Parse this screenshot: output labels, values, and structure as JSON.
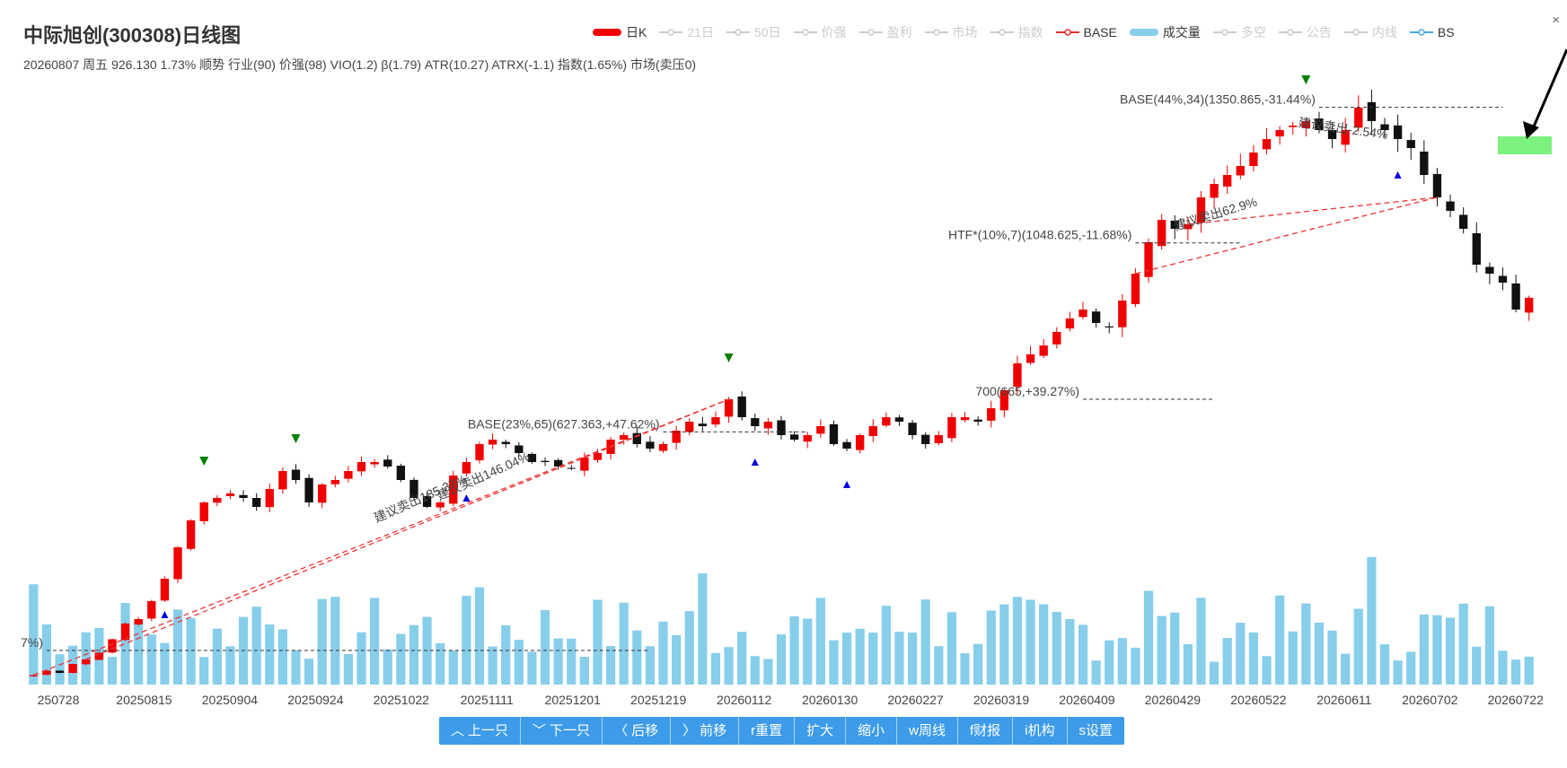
{
  "header": {
    "title": "中际旭创(300308)日线图",
    "subtitle": "20260807 周五 926.130 1.73% 顺势 行业(90) 价强(98) VIO(1.2) β(1.79) ATR(10.27) ATRX(-1.1) 指数(1.65%) 市场(卖压0)",
    "close_symbol": "×"
  },
  "legend": [
    {
      "label": "日K",
      "active": true,
      "kind": "bar",
      "color": "#f00000"
    },
    {
      "label": "21日",
      "active": false,
      "kind": "line",
      "color": "#cccccc"
    },
    {
      "label": "50日",
      "active": false,
      "kind": "line",
      "color": "#cccccc"
    },
    {
      "label": "价强",
      "active": false,
      "kind": "line",
      "color": "#cccccc"
    },
    {
      "label": "盈利",
      "active": false,
      "kind": "line",
      "color": "#cccccc"
    },
    {
      "label": "市场",
      "active": false,
      "kind": "line",
      "color": "#cccccc"
    },
    {
      "label": "指数",
      "active": false,
      "kind": "line",
      "color": "#cccccc"
    },
    {
      "label": "BASE",
      "active": true,
      "kind": "line",
      "color": "#e03030"
    },
    {
      "label": "成交量",
      "active": true,
      "kind": "bar",
      "color": "#87ceeb"
    },
    {
      "label": "多空",
      "active": false,
      "kind": "line",
      "color": "#cccccc"
    },
    {
      "label": "公告",
      "active": false,
      "kind": "line",
      "color": "#cccccc"
    },
    {
      "label": "内线",
      "active": false,
      "kind": "line",
      "color": "#cccccc"
    },
    {
      "label": "BS",
      "active": true,
      "kind": "line",
      "color": "#4aa8e0"
    }
  ],
  "toolbar": [
    {
      "label": "上一只",
      "icon": "^"
    },
    {
      "label": "下一只",
      "icon": "v"
    },
    {
      "label": "后移",
      "icon": "<"
    },
    {
      "label": "前移",
      "icon": ">"
    },
    {
      "label": "r重置",
      "icon": ""
    },
    {
      "label": "扩大",
      "icon": ""
    },
    {
      "label": "缩小",
      "icon": ""
    },
    {
      "label": "w周线",
      "icon": ""
    },
    {
      "label": "f财报",
      "icon": ""
    },
    {
      "label": "i机构",
      "icon": ""
    },
    {
      "label": "s设置",
      "icon": ""
    }
  ],
  "colors": {
    "up": "#f00000",
    "down": "#111111",
    "volume": "#87ceeb",
    "trend": "#ee3333",
    "marker_buy": "#0000dd",
    "marker_sell": "#008000",
    "zone": "#66ee66",
    "toolbar": "#3d9be9"
  },
  "chart_data": {
    "type": "candlestick",
    "title": "中际旭创(300308)日线图",
    "x_ticks": [
      "20250728",
      "20250815",
      "20250904",
      "20250924",
      "20251022",
      "20251111",
      "20251201",
      "20251219",
      "20260112",
      "20260130",
      "20260227",
      "20260319",
      "20260409",
      "20260429",
      "20260522",
      "20260611",
      "20260702",
      "20260722"
    ],
    "first_tick_display": "250728",
    "price_range": [
      60,
      1500
    ],
    "closes": [
      85,
      95,
      90,
      110,
      120,
      135,
      165,
      200,
      210,
      250,
      300,
      370,
      430,
      470,
      480,
      490,
      480,
      460,
      500,
      540,
      520,
      470,
      510,
      520,
      540,
      560,
      560,
      550,
      520,
      480,
      460,
      470,
      530,
      560,
      600,
      610,
      600,
      580,
      560,
      560,
      550,
      545,
      570,
      580,
      610,
      620,
      600,
      590,
      600,
      630,
      650,
      640,
      660,
      700,
      660,
      640,
      650,
      620,
      610,
      620,
      640,
      600,
      590,
      620,
      640,
      660,
      650,
      620,
      600,
      620,
      660,
      660,
      650,
      680,
      720,
      780,
      800,
      820,
      850,
      880,
      900,
      870,
      860,
      920,
      980,
      1050,
      1100,
      1080,
      1090,
      1150,
      1180,
      1200,
      1220,
      1250,
      1280,
      1300,
      1310,
      1320,
      1300,
      1280,
      1300,
      1350,
      1320,
      1300,
      1280,
      1260,
      1200,
      1150,
      1120,
      1080,
      1000,
      980,
      960,
      900,
      926.13
    ],
    "annotations": [
      {
        "text": "BASE(23%,65)(627.363,+47.62%)",
        "price": 627.363
      },
      {
        "text": "700(665,+39.27%)",
        "price": 700
      },
      {
        "text": "HTF*(10%,7)(1048.625,-11.68%)",
        "price": 1048.625
      },
      {
        "text": "BASE(44%,34)(1350.865,-31.44%)",
        "price": 1350.865
      },
      {
        "text": "7%)",
        "price": 140
      },
      {
        "text": "建议卖出146.04%",
        "price": null
      },
      {
        "text": "建议卖出185.37%",
        "price": null
      },
      {
        "text": "建议卖出62.9%",
        "price": null
      },
      {
        "text": "建议卖出-2.54%",
        "price": null
      }
    ],
    "grid": false
  }
}
